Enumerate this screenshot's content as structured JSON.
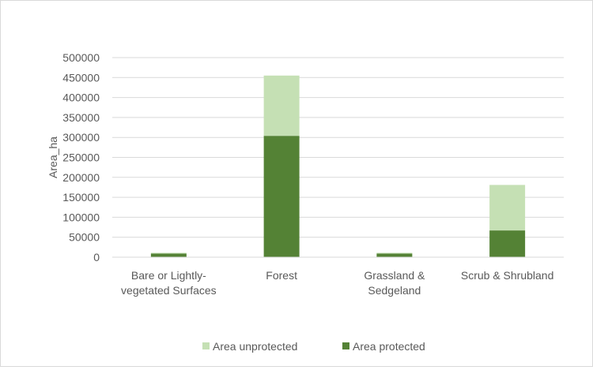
{
  "chart_data": {
    "type": "bar",
    "stacked": true,
    "title": "",
    "xlabel": "",
    "ylabel": "Area_ha",
    "ylim": [
      0,
      500000
    ],
    "yticks": [
      0,
      50000,
      100000,
      150000,
      200000,
      250000,
      300000,
      350000,
      400000,
      450000,
      500000
    ],
    "grid": true,
    "legend_position": "bottom",
    "categories": [
      [
        "Bare or Lightly-",
        "vegetated Surfaces"
      ],
      [
        "Forest"
      ],
      [
        "Grassland &",
        "Sedgeland"
      ],
      [
        "Scrub & Shrubland"
      ]
    ],
    "series": [
      {
        "name": "Area protected",
        "color": "#548235",
        "values": [
          9000,
          304000,
          9000,
          67000
        ]
      },
      {
        "name": "Area unprotected",
        "color": "#c5e0b4",
        "values": [
          2000,
          151000,
          2000,
          114000
        ]
      }
    ],
    "legend_order": [
      1,
      0
    ]
  }
}
